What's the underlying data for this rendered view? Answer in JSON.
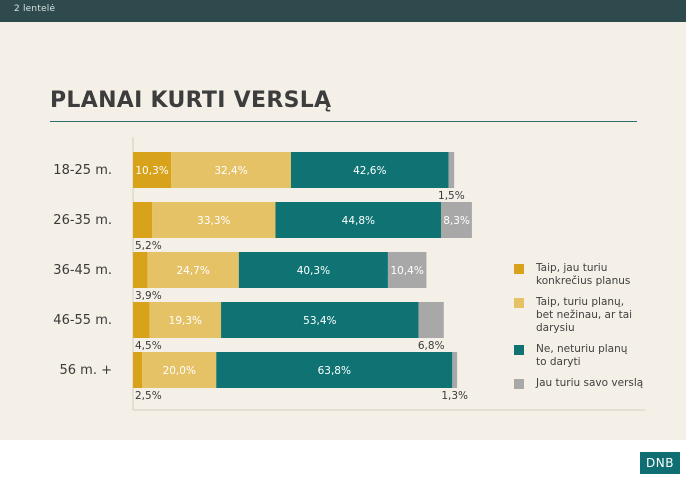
{
  "header": {
    "label": "2 lentelė"
  },
  "logo": {
    "text": "DNB"
  },
  "chart_data": {
    "type": "bar",
    "orientation": "horizontal",
    "stacked": true,
    "title": "PLANAI KURTI VERSLĄ",
    "xlabel": "",
    "ylabel": "",
    "categories": [
      "18-25 m.",
      "26-35 m.",
      "36-45 m.",
      "46-55 m.",
      "56 m. +"
    ],
    "series": [
      {
        "name": "Taip, jau turiu\n konkrečius planus",
        "color": "#d9a21b",
        "values": [
          10.3,
          5.2,
          3.9,
          4.5,
          2.5
        ],
        "labels": [
          "10,3%",
          "5,2%",
          "3,9%",
          "4,5%",
          "2,5%"
        ]
      },
      {
        "name": "Taip, turiu planų,\n bet nežinau, ar tai\ndarysiu",
        "color": "#e5c266",
        "values": [
          32.4,
          33.3,
          24.7,
          19.3,
          20.0
        ],
        "labels": [
          "32,4%",
          "33,3%",
          "24,7%",
          "19,3%",
          "20,0%"
        ]
      },
      {
        "name": "Ne, neturiu planų\nto daryti",
        "color": "#0f7373",
        "values": [
          42.6,
          44.8,
          40.3,
          53.4,
          63.8
        ],
        "labels": [
          "42,6%",
          "44,8%",
          "40,3%",
          "53,4%",
          "63,8%"
        ]
      },
      {
        "name": "Jau turiu savo verslą",
        "color": "#a8a8a8",
        "values": [
          1.5,
          8.3,
          10.4,
          6.8,
          1.3
        ],
        "labels": [
          "1,5%",
          "8,3%",
          "10,4%",
          "6,8%",
          "1,3%"
        ]
      }
    ],
    "legend_position": "right"
  }
}
